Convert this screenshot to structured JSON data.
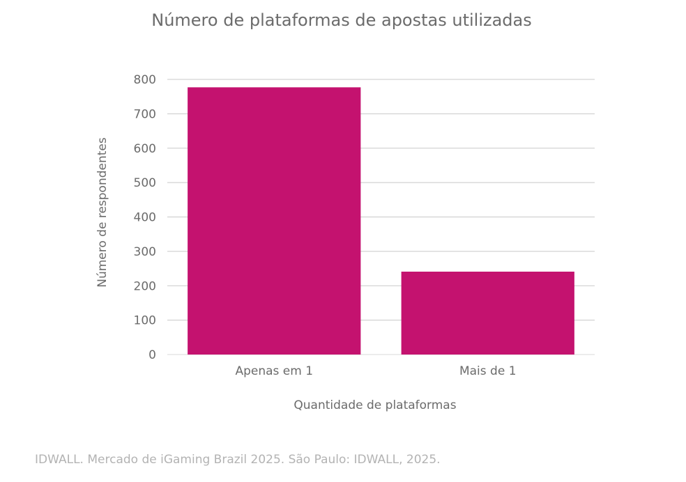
{
  "chart_data": {
    "type": "bar",
    "title": "Número de plataformas de apostas utilizadas",
    "xlabel": "Quantidade de plataformas",
    "ylabel": "Número de respondentes",
    "categories": [
      "Apenas em 1",
      "Mais de 1"
    ],
    "values": [
      777,
      241
    ],
    "ylim": [
      0,
      800
    ],
    "yticks": [
      0,
      100,
      200,
      300,
      400,
      500,
      600,
      700,
      800
    ],
    "grid": true,
    "bar_color": "#c4126f"
  },
  "source": "IDWALL. Mercado de iGaming Brazil 2025. São Paulo: IDWALL, 2025."
}
